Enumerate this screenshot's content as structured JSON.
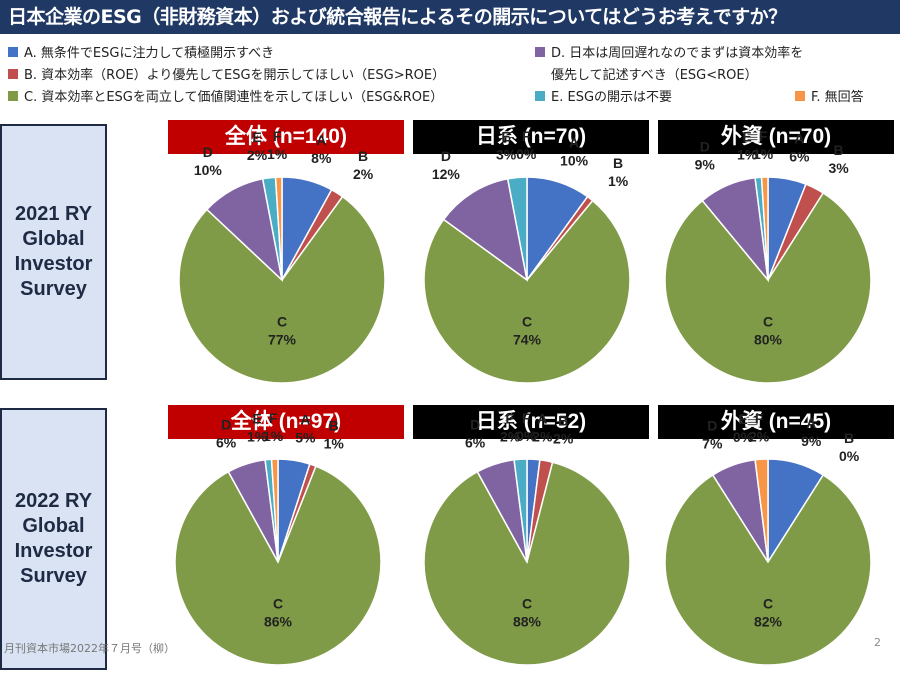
{
  "title": "日本企業のESG（非財務資本）および統合報告によるその開示についてはどうお考えですか？",
  "legend": [
    {
      "key": "A",
      "label": "A. 無条件でESGに注力して積極開示すべき",
      "color": "#4472c4"
    },
    {
      "key": "B",
      "label": "B. 資本効率（ROE）より優先してESGを開示してほしい（ESG>ROE）",
      "color": "#c0504d"
    },
    {
      "key": "C",
      "label": "C. 資本効率とESGを両立して価値関連性を示してほしい（ESG&ROE）",
      "color": "#7f9b47"
    },
    {
      "key": "D",
      "label": "D. 日本は周回遅れなのでまずは資本効率を",
      "label_line2": "優先して記述すべき（ESG<ROE）",
      "color": "#8064a2"
    },
    {
      "key": "E",
      "label": "E. ESGの開示は不要",
      "color": "#4bacc6"
    },
    {
      "key": "F",
      "label": "F. 無回答",
      "color": "#f79646"
    }
  ],
  "rows": [
    {
      "label_lines": [
        "2021 RY",
        "Global",
        "Investor",
        "Survey"
      ]
    },
    {
      "label_lines": [
        "2022 RY",
        "Global",
        "Investor",
        "Survey"
      ]
    }
  ],
  "chart_data": [
    {
      "type": "pie",
      "title": "全体 (n=140)",
      "survey": "2021 RY",
      "group": "全体",
      "n": 140,
      "header_color": "#c00000",
      "categories": [
        "A",
        "B",
        "C",
        "D",
        "E",
        "F"
      ],
      "values": [
        8,
        2,
        77,
        10,
        2,
        1
      ]
    },
    {
      "type": "pie",
      "title": "日系 (n=70)",
      "survey": "2021 RY",
      "group": "日系",
      "n": 70,
      "header_color": "#000000",
      "categories": [
        "A",
        "B",
        "C",
        "D",
        "E",
        "F"
      ],
      "values": [
        10,
        1,
        74,
        12,
        3,
        0
      ]
    },
    {
      "type": "pie",
      "title": "外資 (n=70)",
      "survey": "2021 RY",
      "group": "外資",
      "n": 70,
      "header_color": "#000000",
      "categories": [
        "A",
        "B",
        "C",
        "D",
        "E",
        "F"
      ],
      "values": [
        6,
        3,
        80,
        9,
        1,
        1
      ]
    },
    {
      "type": "pie",
      "title": "全体 (n=97)",
      "survey": "2022 RY",
      "group": "全体",
      "n": 97,
      "header_color": "#c00000",
      "categories": [
        "A",
        "B",
        "C",
        "D",
        "E",
        "F"
      ],
      "values": [
        5,
        1,
        86,
        6,
        1,
        1
      ]
    },
    {
      "type": "pie",
      "title": "日系 (n=52)",
      "survey": "2022 RY",
      "group": "日系",
      "n": 52,
      "header_color": "#000000",
      "categories": [
        "A",
        "B",
        "C",
        "D",
        "E",
        "F"
      ],
      "values": [
        2,
        2,
        88,
        6,
        2,
        0
      ]
    },
    {
      "type": "pie",
      "title": "外資 (n=45)",
      "survey": "2022 RY",
      "group": "外資",
      "n": 45,
      "header_color": "#000000",
      "categories": [
        "A",
        "B",
        "C",
        "D",
        "E",
        "F"
      ],
      "values": [
        9,
        0,
        82,
        7,
        0,
        2
      ]
    }
  ],
  "footnote": "月刊資本市場2022年７月号（柳）",
  "page_number": "2"
}
